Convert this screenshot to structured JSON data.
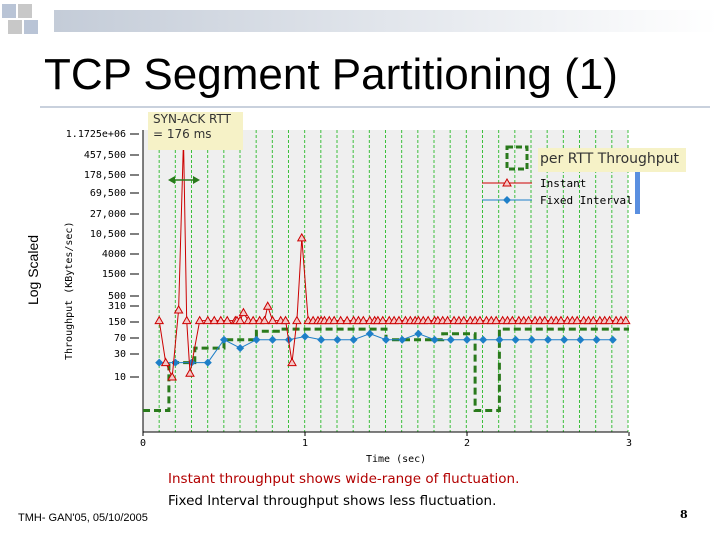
{
  "slide": {
    "title": "TCP Segment Partitioning (1)",
    "callout_rtt": "SYN-ACK RTT = 176 ms",
    "callout_per_rtt": "per RTT Throughput",
    "log_scaled": "Log Scaled",
    "note_line1": "Instant throughput shows wide-range of fluctuation.",
    "note_line2": "Fixed Interval throughput shows less fluctuation.",
    "footer": "TMH- GAN'05, 05/10/2005",
    "page_number": "8"
  },
  "colors": {
    "instant": "#cc0000",
    "fixed": "#1e7fc8",
    "per_rtt": "#2a7a1c",
    "grid_vertical": "#3cbf3c",
    "plot_bg": "#efefef",
    "deco_blue": "#b9c4d6",
    "deco_gray": "#c8c8c8"
  },
  "chart_data": {
    "type": "line",
    "title": "",
    "xlabel": "Time (sec)",
    "ylabel": "Throughput (KBytes/sec)",
    "xlim": [
      0,
      3
    ],
    "x_ticks": [
      "0",
      "1",
      "2",
      "3"
    ],
    "y_ticks": [
      "1.1725e+06",
      "457,500",
      "178,500",
      "69,500",
      "27,000",
      "10,500",
      "4000",
      "1500",
      "500",
      "310",
      "150",
      "70",
      "30",
      "10"
    ],
    "legend": [
      "Instant",
      "Fixed Interval"
    ],
    "series": [
      {
        "name": "Instant",
        "x": [
          0.1,
          0.14,
          0.18,
          0.22,
          0.25,
          0.27,
          0.29,
          0.35,
          0.4,
          0.44,
          0.48,
          0.52,
          0.57,
          0.58,
          0.6,
          0.62,
          0.65,
          0.68,
          0.72,
          0.75,
          0.77,
          0.8,
          0.85,
          0.88,
          0.92,
          0.95,
          0.98,
          1.02,
          1.05,
          1.08,
          1.1,
          1.12,
          1.15,
          1.18,
          1.22,
          1.26,
          1.3,
          1.33,
          1.36,
          1.4,
          1.43,
          1.45,
          1.48,
          1.52,
          1.55,
          1.58,
          1.62,
          1.65,
          1.68,
          1.7,
          1.73,
          1.76,
          1.8,
          1.82,
          1.85,
          1.88,
          1.92,
          1.95,
          1.98,
          2.02,
          2.05,
          2.08,
          2.12,
          2.15,
          2.18,
          2.22,
          2.25,
          2.28,
          2.32,
          2.35,
          2.38,
          2.42,
          2.45,
          2.48,
          2.52,
          2.55,
          2.58,
          2.62,
          2.65,
          2.68,
          2.72,
          2.75,
          2.78,
          2.82,
          2.85,
          2.88,
          2.92,
          2.95,
          2.98
        ],
        "values": [
          150,
          20,
          10,
          250,
          900000,
          150,
          12,
          150,
          150,
          150,
          150,
          150,
          150,
          150,
          150,
          220,
          150,
          150,
          150,
          150,
          300,
          150,
          150,
          150,
          20,
          150,
          8000,
          150,
          150,
          150,
          150,
          150,
          150,
          150,
          150,
          150,
          150,
          150,
          150,
          150,
          150,
          150,
          150,
          150,
          150,
          150,
          150,
          150,
          150,
          150,
          150,
          150,
          150,
          150,
          150,
          150,
          150,
          150,
          150,
          150,
          150,
          150,
          150,
          150,
          150,
          150,
          150,
          150,
          150,
          150,
          150,
          150,
          150,
          150,
          150,
          150,
          150,
          150,
          150,
          150,
          150,
          150,
          150,
          150,
          150,
          150,
          150,
          150,
          150
        ]
      },
      {
        "name": "Fixed Interval",
        "x": [
          0.1,
          0.2,
          0.3,
          0.4,
          0.5,
          0.6,
          0.7,
          0.8,
          0.9,
          1.0,
          1.1,
          1.2,
          1.3,
          1.4,
          1.5,
          1.6,
          1.7,
          1.8,
          1.9,
          2.0,
          2.1,
          2.2,
          2.3,
          2.4,
          2.5,
          2.6,
          2.7,
          2.8,
          2.9
        ],
        "values": [
          20,
          20,
          20,
          20,
          60,
          40,
          60,
          60,
          60,
          70,
          60,
          60,
          60,
          80,
          60,
          60,
          80,
          60,
          60,
          60,
          60,
          60,
          60,
          60,
          60,
          60,
          60,
          60,
          60
        ]
      },
      {
        "name": "per RTT Throughput",
        "x": [
          0.0,
          0.16,
          0.16,
          0.32,
          0.32,
          0.5,
          0.5,
          0.7,
          0.7,
          0.85,
          0.85,
          1.5,
          1.5,
          1.85,
          1.85,
          2.05,
          2.05,
          2.2,
          2.2,
          2.3,
          2.3,
          3.0
        ],
        "values": [
          2,
          2,
          20,
          20,
          40,
          40,
          60,
          60,
          90,
          90,
          100,
          100,
          60,
          60,
          80,
          80,
          2,
          2,
          100,
          100,
          100,
          100
        ]
      }
    ]
  }
}
